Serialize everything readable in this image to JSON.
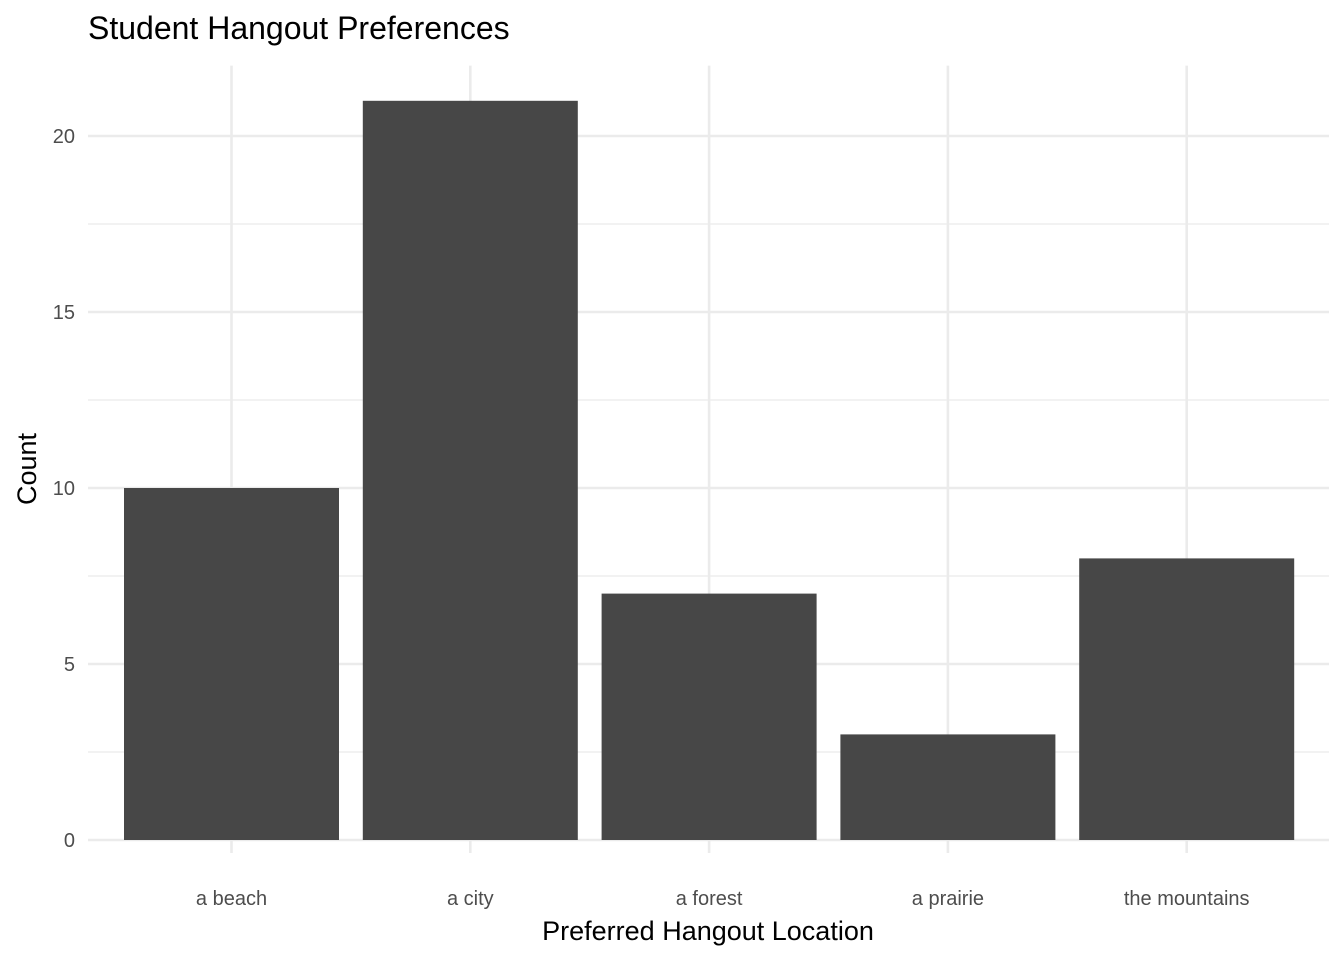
{
  "chart_data": {
    "type": "bar",
    "title": "Student Hangout Preferences",
    "xlabel": "Preferred Hangout Location",
    "ylabel": "Count",
    "categories": [
      "a beach",
      "a city",
      "a forest",
      "a prairie",
      "the mountains"
    ],
    "values": [
      10,
      21,
      7,
      3,
      8
    ],
    "ylim": [
      0,
      22
    ],
    "yticks": [
      0,
      5,
      10,
      15,
      20
    ],
    "grid": true,
    "legend": "none",
    "bar_color": "#474747",
    "grid_color": "#ebebeb"
  }
}
